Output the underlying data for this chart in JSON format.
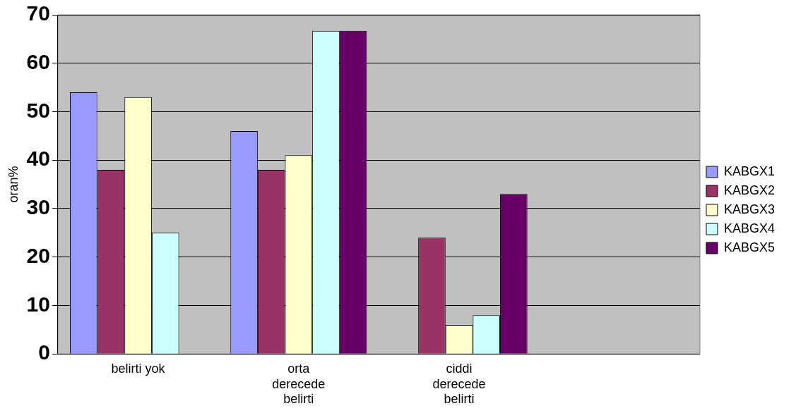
{
  "chart_data": {
    "type": "bar",
    "ylabel": "oran%",
    "categories": [
      "belirti yok",
      "orta derecede belirti",
      "ciddi derecede belirti",
      null
    ],
    "series": [
      {
        "name": "KABGX1",
        "color": "#9999ff",
        "values": [
          54,
          46,
          0,
          null
        ]
      },
      {
        "name": "KABGX2",
        "color": "#993366",
        "values": [
          38,
          38,
          24,
          null
        ]
      },
      {
        "name": "KABGX3",
        "color": "#ffffcc",
        "values": [
          53,
          41,
          6,
          null
        ]
      },
      {
        "name": "KABGX4",
        "color": "#ccffff",
        "values": [
          25,
          66.7,
          8,
          null
        ]
      },
      {
        "name": "KABGX5",
        "color": "#660066",
        "values": [
          0,
          66.7,
          33,
          null
        ]
      }
    ],
    "ylim": [
      0,
      70
    ],
    "yticks": [
      0,
      10,
      20,
      30,
      40,
      50,
      60,
      70
    ],
    "grid": "y",
    "legend": "right"
  }
}
